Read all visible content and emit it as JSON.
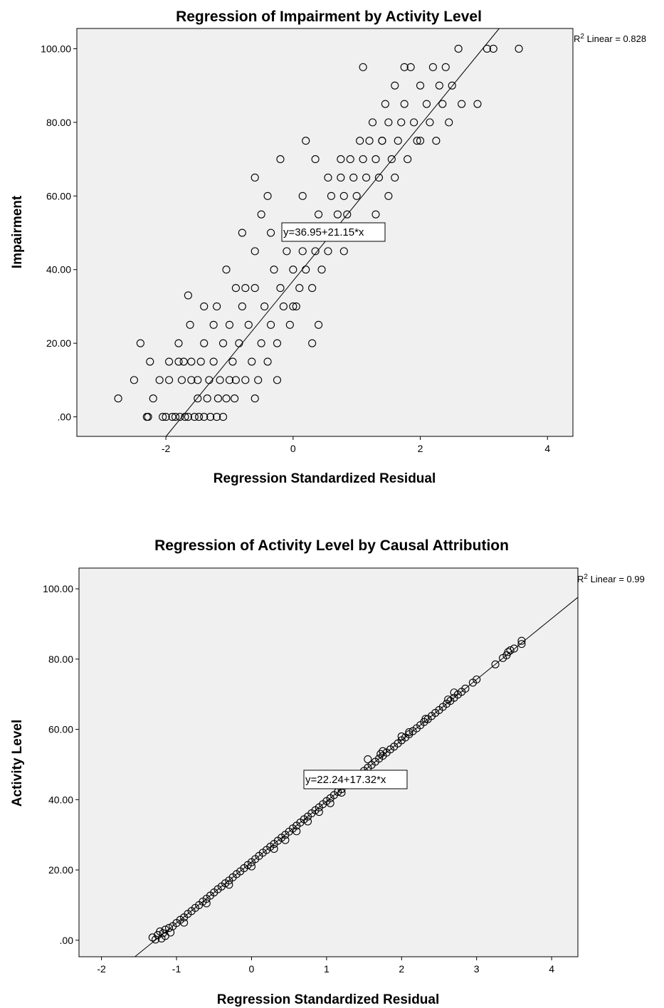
{
  "chart_data": [
    {
      "type": "scatter",
      "title": "Regression of Impairment by Activity Level",
      "xlabel": "Regression Standardized Residual",
      "ylabel": "Impairment",
      "xlim": [
        -3.4,
        4.4
      ],
      "ylim": [
        -5.3,
        105.5
      ],
      "x_ticks": [
        -2,
        0,
        2,
        4
      ],
      "x_tick_labels": [
        "-2",
        "0",
        "2",
        "4"
      ],
      "y_ticks": [
        0,
        20,
        40,
        60,
        80,
        100
      ],
      "y_tick_labels": [
        ".00",
        "20.00",
        "40.00",
        "60.00",
        "80.00",
        "100.00"
      ],
      "fit_line": {
        "intercept": 36.95,
        "slope": 21.15
      },
      "equation_label": "y=36.95+21.15*x",
      "r2_prefix": "R",
      "r2_sup": "2",
      "r2_text": " Linear = 0.828",
      "background": "#f0f0f0",
      "marker": "open-circle",
      "points": [
        [
          -2.75,
          5
        ],
        [
          -2.5,
          10
        ],
        [
          -2.4,
          20
        ],
        [
          -2.3,
          0
        ],
        [
          -2.28,
          0
        ],
        [
          -2.25,
          15
        ],
        [
          -2.2,
          5
        ],
        [
          -2.1,
          10
        ],
        [
          -2.05,
          0
        ],
        [
          -2.0,
          0
        ],
        [
          -1.95,
          15
        ],
        [
          -1.95,
          10
        ],
        [
          -1.9,
          0
        ],
        [
          -1.85,
          0
        ],
        [
          -1.78,
          0
        ],
        [
          -1.8,
          20
        ],
        [
          -1.8,
          15
        ],
        [
          -1.75,
          10
        ],
        [
          -1.72,
          15
        ],
        [
          -1.7,
          0
        ],
        [
          -1.65,
          0
        ],
        [
          -1.62,
          25
        ],
        [
          -1.6,
          15
        ],
        [
          -1.6,
          10
        ],
        [
          -1.55,
          0
        ],
        [
          -1.5,
          5
        ],
        [
          -1.5,
          10
        ],
        [
          -1.48,
          0
        ],
        [
          -1.45,
          15
        ],
        [
          -1.4,
          20
        ],
        [
          -1.4,
          0
        ],
        [
          -1.35,
          5
        ],
        [
          -1.32,
          10
        ],
        [
          -1.3,
          0
        ],
        [
          -1.25,
          25
        ],
        [
          -1.25,
          15
        ],
        [
          -1.2,
          0
        ],
        [
          -1.18,
          5
        ],
        [
          -1.15,
          10
        ],
        [
          -1.1,
          20
        ],
        [
          -1.1,
          0
        ],
        [
          -1.05,
          5
        ],
        [
          -1.0,
          10
        ],
        [
          -1.0,
          25
        ],
        [
          -0.95,
          15
        ],
        [
          -0.92,
          5
        ],
        [
          -0.9,
          10
        ],
        [
          -0.85,
          20
        ],
        [
          -0.8,
          30
        ],
        [
          -0.75,
          10
        ],
        [
          -0.7,
          25
        ],
        [
          -0.65,
          15
        ],
        [
          -0.6,
          35
        ],
        [
          -0.55,
          10
        ],
        [
          -0.5,
          20
        ],
        [
          -0.45,
          30
        ],
        [
          -0.4,
          15
        ],
        [
          -0.35,
          25
        ],
        [
          -0.3,
          40
        ],
        [
          -0.25,
          20
        ],
        [
          -0.2,
          35
        ],
        [
          -0.15,
          30
        ],
        [
          -0.1,
          45
        ],
        [
          -0.05,
          25
        ],
        [
          0.0,
          40
        ],
        [
          0.05,
          30
        ],
        [
          0.1,
          35
        ],
        [
          0.15,
          45
        ],
        [
          0.2,
          40
        ],
        [
          0.25,
          50
        ],
        [
          0.3,
          35
        ],
        [
          0.35,
          45
        ],
        [
          0.4,
          55
        ],
        [
          0.45,
          40
        ],
        [
          0.5,
          50
        ],
        [
          0.55,
          45
        ],
        [
          0.6,
          60
        ],
        [
          0.65,
          50
        ],
        [
          0.7,
          55
        ],
        [
          0.75,
          65
        ],
        [
          0.8,
          60
        ],
        [
          0.85,
          55
        ],
        [
          0.9,
          70
        ],
        [
          0.95,
          65
        ],
        [
          1.0,
          60
        ],
        [
          1.05,
          75
        ],
        [
          1.1,
          70
        ],
        [
          1.15,
          65
        ],
        [
          1.2,
          75
        ],
        [
          1.25,
          80
        ],
        [
          1.3,
          70
        ],
        [
          1.35,
          65
        ],
        [
          1.4,
          75
        ],
        [
          1.45,
          85
        ],
        [
          1.5,
          80
        ],
        [
          1.55,
          70
        ],
        [
          1.6,
          90
        ],
        [
          1.65,
          75
        ],
        [
          1.7,
          80
        ],
        [
          1.75,
          85
        ],
        [
          1.8,
          70
        ],
        [
          1.85,
          95
        ],
        [
          1.9,
          80
        ],
        [
          1.95,
          75
        ],
        [
          2.0,
          90
        ],
        [
          2.1,
          85
        ],
        [
          2.15,
          80
        ],
        [
          2.2,
          95
        ],
        [
          2.25,
          75
        ],
        [
          2.3,
          90
        ],
        [
          2.35,
          85
        ],
        [
          2.4,
          95
        ],
        [
          2.45,
          80
        ],
        [
          2.5,
          90
        ],
        [
          2.6,
          100
        ],
        [
          2.65,
          85
        ],
        [
          2.9,
          85
        ],
        [
          3.05,
          100
        ],
        [
          3.15,
          100
        ],
        [
          3.55,
          100
        ],
        [
          -1.4,
          30
        ],
        [
          -1.2,
          30
        ],
        [
          -0.9,
          35
        ],
        [
          -0.6,
          45
        ],
        [
          -0.35,
          50
        ],
        [
          -0.6,
          65
        ],
        [
          -0.4,
          60
        ],
        [
          -0.2,
          70
        ],
        [
          0.2,
          75
        ],
        [
          0.35,
          70
        ],
        [
          1.1,
          95
        ],
        [
          1.75,
          95
        ],
        [
          1.3,
          55
        ],
        [
          1.5,
          60
        ],
        [
          0.55,
          65
        ],
        [
          0.75,
          70
        ],
        [
          -0.5,
          55
        ],
        [
          0.15,
          60
        ],
        [
          -1.65,
          33
        ],
        [
          -1.05,
          40
        ],
        [
          -0.8,
          50
        ],
        [
          0.0,
          30
        ],
        [
          0.4,
          25
        ],
        [
          0.8,
          45
        ],
        [
          -0.25,
          10
        ],
        [
          -0.6,
          5
        ],
        [
          0.3,
          20
        ],
        [
          -0.75,
          35
        ],
        [
          1.0,
          50
        ],
        [
          1.4,
          75
        ],
        [
          1.6,
          65
        ],
        [
          2.0,
          75
        ]
      ]
    },
    {
      "type": "scatter",
      "title": "Regression of Activity Level by Causal Attribution",
      "xlabel": "Regression Standardized Residual",
      "ylabel": "Activity Level",
      "xlim": [
        -2.3,
        4.35
      ],
      "ylim": [
        -4.7,
        105.9
      ],
      "x_ticks": [
        -2,
        -1,
        0,
        1,
        2,
        3,
        4
      ],
      "x_tick_labels": [
        "-2",
        "-1",
        "0",
        "1",
        "2",
        "3",
        "4"
      ],
      "y_ticks": [
        0,
        20,
        40,
        60,
        80,
        100
      ],
      "y_tick_labels": [
        ".00",
        "20.00",
        "40.00",
        "60.00",
        "80.00",
        "100.00"
      ],
      "fit_line": {
        "intercept": 22.24,
        "slope": 17.32
      },
      "equation_label": "y=22.24+17.32*x",
      "r2_prefix": "R",
      "r2_sup": "2",
      "r2_text": " Linear = 0.99",
      "background": "#f0f0f0",
      "marker": "open-circle",
      "points": [
        [
          -1.32,
          0.8
        ],
        [
          -1.28,
          0.2
        ],
        [
          -1.25,
          1.5
        ],
        [
          -1.22,
          2.5
        ],
        [
          -1.18,
          2.0
        ],
        [
          -1.15,
          3.0
        ],
        [
          -1.1,
          3.5
        ],
        [
          -1.05,
          4.0
        ],
        [
          -1.0,
          4.9
        ],
        [
          -0.95,
          5.8
        ],
        [
          -0.9,
          6.5
        ],
        [
          -0.85,
          7.5
        ],
        [
          -0.8,
          8.3
        ],
        [
          -0.75,
          9.2
        ],
        [
          -0.7,
          10.0
        ],
        [
          -0.65,
          11.0
        ],
        [
          -0.6,
          11.8
        ],
        [
          -0.55,
          12.7
        ],
        [
          -0.5,
          13.6
        ],
        [
          -0.45,
          14.5
        ],
        [
          -0.4,
          15.3
        ],
        [
          -0.35,
          16.2
        ],
        [
          -0.3,
          17.0
        ],
        [
          -0.25,
          17.9
        ],
        [
          -0.2,
          18.8
        ],
        [
          -0.15,
          19.6
        ],
        [
          -0.1,
          20.5
        ],
        [
          -0.05,
          21.4
        ],
        [
          0.0,
          22.2
        ],
        [
          0.05,
          23.1
        ],
        [
          0.1,
          24.0
        ],
        [
          0.15,
          24.9
        ],
        [
          0.2,
          25.7
        ],
        [
          0.25,
          26.6
        ],
        [
          0.3,
          27.4
        ],
        [
          0.35,
          28.3
        ],
        [
          0.4,
          29.2
        ],
        [
          0.45,
          30.0
        ],
        [
          0.5,
          30.9
        ],
        [
          0.55,
          31.8
        ],
        [
          0.6,
          32.6
        ],
        [
          0.65,
          33.5
        ],
        [
          0.7,
          34.4
        ],
        [
          0.75,
          35.2
        ],
        [
          0.8,
          36.1
        ],
        [
          0.85,
          37.0
        ],
        [
          0.9,
          37.8
        ],
        [
          0.95,
          38.7
        ],
        [
          1.0,
          39.6
        ],
        [
          1.05,
          40.4
        ],
        [
          1.1,
          41.3
        ],
        [
          1.15,
          42.2
        ],
        [
          1.2,
          43.0
        ],
        [
          1.3,
          44.8
        ],
        [
          1.4,
          46.5
        ],
        [
          1.5,
          48.2
        ],
        [
          1.55,
          49.1
        ],
        [
          1.6,
          49.9
        ],
        [
          1.65,
          50.8
        ],
        [
          1.7,
          51.7
        ],
        [
          1.75,
          52.5
        ],
        [
          1.8,
          53.4
        ],
        [
          1.85,
          54.3
        ],
        [
          1.9,
          55.1
        ],
        [
          1.95,
          56.0
        ],
        [
          2.0,
          56.9
        ],
        [
          2.05,
          57.7
        ],
        [
          2.1,
          58.6
        ],
        [
          2.15,
          59.5
        ],
        [
          2.2,
          60.3
        ],
        [
          2.25,
          61.2
        ],
        [
          2.3,
          62.1
        ],
        [
          2.35,
          62.9
        ],
        [
          2.4,
          63.8
        ],
        [
          2.45,
          64.7
        ],
        [
          2.5,
          65.5
        ],
        [
          2.55,
          66.4
        ],
        [
          2.6,
          67.3
        ],
        [
          2.65,
          68.1
        ],
        [
          2.7,
          69.0
        ],
        [
          2.75,
          69.9
        ],
        [
          2.8,
          70.7
        ],
        [
          2.85,
          71.6
        ],
        [
          2.95,
          73.3
        ],
        [
          3.0,
          74.2
        ],
        [
          3.25,
          78.5
        ],
        [
          3.35,
          80.3
        ],
        [
          3.4,
          81.1
        ],
        [
          3.42,
          82.0
        ],
        [
          3.5,
          83.0
        ],
        [
          3.6,
          84.3
        ],
        [
          3.6,
          85.2
        ],
        [
          -1.2,
          0.5
        ],
        [
          -1.15,
          1.2
        ],
        [
          -1.08,
          2.2
        ],
        [
          -0.9,
          5.0
        ],
        [
          -0.6,
          10.5
        ],
        [
          -0.3,
          15.8
        ],
        [
          0.0,
          21.0
        ],
        [
          0.3,
          26.0
        ],
        [
          0.6,
          31.0
        ],
        [
          0.9,
          36.5
        ],
        [
          1.2,
          42.0
        ],
        [
          1.45,
          47.0
        ],
        [
          1.72,
          53.0
        ],
        [
          2.0,
          58.0
        ],
        [
          2.32,
          63.0
        ],
        [
          2.62,
          68.5
        ],
        [
          2.7,
          70.5
        ],
        [
          3.45,
          82.5
        ],
        [
          1.55,
          51.5
        ],
        [
          1.75,
          53.8
        ],
        [
          2.1,
          59.2
        ],
        [
          0.45,
          28.5
        ],
        [
          0.75,
          33.8
        ],
        [
          1.05,
          39.0
        ]
      ]
    }
  ]
}
